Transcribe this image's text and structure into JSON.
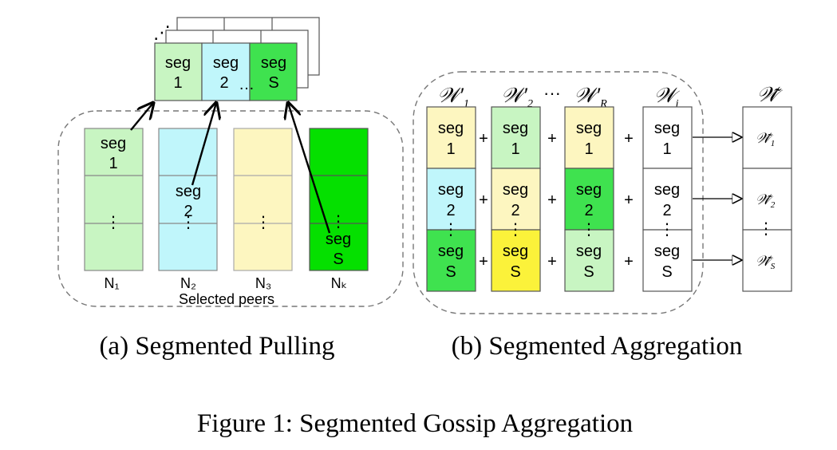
{
  "panel_a": {
    "caption": "(a)  Segmented Pulling",
    "pulled_segments": [
      {
        "line1": "seg",
        "line2": "1",
        "color": "#c8f5c2"
      },
      {
        "line1": "seg",
        "line2": "2",
        "color": "#c0f6fb"
      },
      {
        "line1": "seg",
        "line2": "S",
        "color": "#3fe24f"
      }
    ],
    "pulled_ellipsis": "…",
    "stack_ellipsis": "⋰",
    "peers": [
      {
        "label": "N₁",
        "color": "#c8f5c2"
      },
      {
        "label": "N₂",
        "color": "#c0f6fb"
      },
      {
        "label": "N₃",
        "color": "#fdf6c0"
      },
      {
        "label": "Nₖ",
        "color": "#05e000"
      }
    ],
    "peer_seg_top": {
      "line1": "seg",
      "line2": "1"
    },
    "peer_seg_mid": {
      "line1": "seg",
      "line2": "2"
    },
    "peer_seg_bottom": {
      "line1": "seg",
      "line2": "S"
    },
    "vdots": "⋮",
    "group_label": "Selected peers"
  },
  "panel_b": {
    "caption": "(b)  Segmented Aggregation",
    "column_headers": [
      "𝒲′",
      "𝒲′",
      "𝒲′",
      "𝒲"
    ],
    "column_subscripts": [
      "1",
      "2",
      "R",
      "i"
    ],
    "header_ellipsis": "···",
    "plus": "+",
    "rows": [
      {
        "line1": "seg",
        "line2": "1",
        "colors": [
          "#fdf6c0",
          "#c8f5c2",
          "#fdf6c0",
          "#ffffff"
        ]
      },
      {
        "line1": "seg",
        "line2": "2",
        "colors": [
          "#c0f6fb",
          "#fdf6c0",
          "#3fe24f",
          "#ffffff"
        ]
      },
      {
        "line1": "seg",
        "line2": "S",
        "colors": [
          "#3fe24f",
          "#fbf23a",
          "#c8f5c2",
          "#ffffff"
        ]
      }
    ],
    "vdots": "⋮",
    "result_header": "𝒲̃",
    "result_cells": [
      {
        "main": "𝒲̃",
        "sub": "1"
      },
      {
        "main": "𝒲̃",
        "sub": "2"
      },
      {
        "main": "𝒲̃",
        "sub": "S"
      }
    ]
  },
  "figure_caption": "Figure 1: Segmented Gossip Aggregation"
}
